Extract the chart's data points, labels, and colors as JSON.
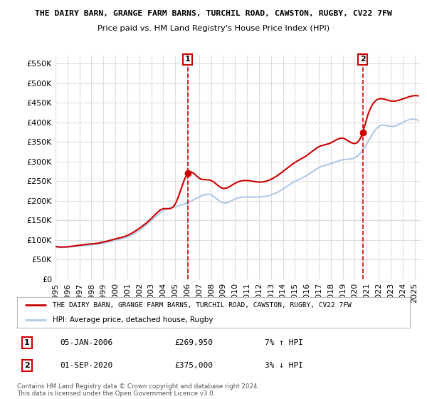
{
  "title": "THE DAIRY BARN, GRANGE FARM BARNS, TURCHIL ROAD, CAWSTON, RUGBY, CV22 7FW",
  "subtitle": "Price paid vs. HM Land Registry's House Price Index (HPI)",
  "property_label": "THE DAIRY BARN, GRANGE FARM BARNS, TURCHIL ROAD, CAWSTON, RUGBY, CV22 7FW",
  "hpi_label": "HPI: Average price, detached house, Rugby",
  "transaction1_date": "05-JAN-2006",
  "transaction1_price": 269950,
  "transaction1_hpi": "7% ↑ HPI",
  "transaction2_date": "01-SEP-2020",
  "transaction2_price": 375000,
  "transaction2_hpi": "3% ↓ HPI",
  "footnote": "Contains HM Land Registry data © Crown copyright and database right 2024.\nThis data is licensed under the Open Government Licence v3.0.",
  "ylim": [
    0,
    570000
  ],
  "yticks": [
    0,
    50000,
    100000,
    150000,
    200000,
    250000,
    300000,
    350000,
    400000,
    450000,
    500000,
    550000
  ],
  "background_color": "#ffffff",
  "grid_color": "#dddddd",
  "hpi_color": "#adc8e8",
  "property_color": "#cc0000",
  "transaction1_x_year": 2006.04,
  "transaction1_y": 269950,
  "transaction2_x_year": 2020.67,
  "transaction2_y": 375000,
  "xmin": 1995.0,
  "xmax": 2025.5,
  "hpi_keypoints": [
    [
      1995.0,
      82000
    ],
    [
      1996.0,
      82000
    ],
    [
      1997.0,
      85000
    ],
    [
      1998.0,
      88000
    ],
    [
      1999.0,
      92000
    ],
    [
      2000.0,
      100000
    ],
    [
      2001.0,
      108000
    ],
    [
      2002.0,
      125000
    ],
    [
      2003.0,
      150000
    ],
    [
      2004.0,
      175000
    ],
    [
      2005.0,
      185000
    ],
    [
      2006.0,
      195000
    ],
    [
      2007.0,
      210000
    ],
    [
      2008.0,
      215000
    ],
    [
      2009.0,
      195000
    ],
    [
      2010.0,
      205000
    ],
    [
      2011.0,
      210000
    ],
    [
      2012.0,
      210000
    ],
    [
      2013.0,
      215000
    ],
    [
      2014.0,
      230000
    ],
    [
      2015.0,
      250000
    ],
    [
      2016.0,
      265000
    ],
    [
      2017.0,
      285000
    ],
    [
      2018.0,
      295000
    ],
    [
      2019.0,
      305000
    ],
    [
      2020.0,
      310000
    ],
    [
      2021.0,
      345000
    ],
    [
      2022.0,
      390000
    ],
    [
      2023.0,
      390000
    ],
    [
      2024.0,
      400000
    ],
    [
      2025.3,
      405000
    ]
  ],
  "prop_keypoints": [
    [
      1995.0,
      84000
    ],
    [
      1996.0,
      83000
    ],
    [
      1997.0,
      87000
    ],
    [
      1998.0,
      90000
    ],
    [
      1999.0,
      95000
    ],
    [
      2000.0,
      103000
    ],
    [
      2001.0,
      112000
    ],
    [
      2002.0,
      130000
    ],
    [
      2003.0,
      155000
    ],
    [
      2004.0,
      180000
    ],
    [
      2005.0,
      192000
    ],
    [
      2006.04,
      269950
    ],
    [
      2007.0,
      258000
    ],
    [
      2008.0,
      252000
    ],
    [
      2009.0,
      232000
    ],
    [
      2010.0,
      245000
    ],
    [
      2011.0,
      252000
    ],
    [
      2012.0,
      248000
    ],
    [
      2013.0,
      255000
    ],
    [
      2014.0,
      275000
    ],
    [
      2015.0,
      298000
    ],
    [
      2016.0,
      316000
    ],
    [
      2017.0,
      338000
    ],
    [
      2018.0,
      348000
    ],
    [
      2019.0,
      360000
    ],
    [
      2020.67,
      375000
    ],
    [
      2021.0,
      410000
    ],
    [
      2022.0,
      460000
    ],
    [
      2023.0,
      455000
    ],
    [
      2024.0,
      460000
    ],
    [
      2025.3,
      468000
    ]
  ]
}
